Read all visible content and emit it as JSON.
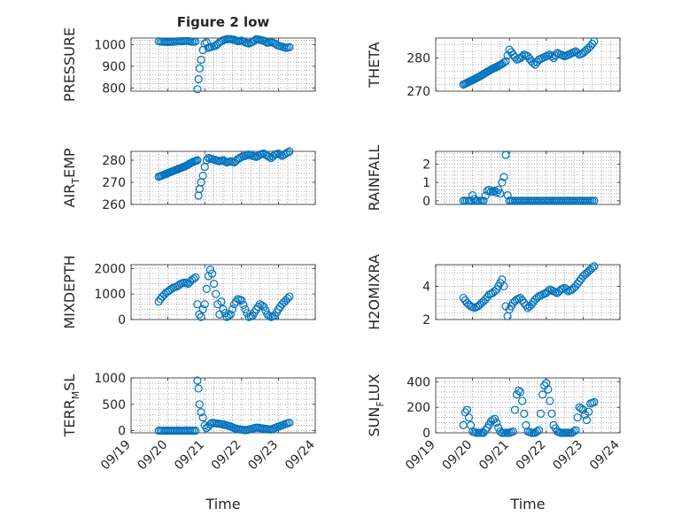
{
  "figure_title": "Figure 2 low",
  "chart_data": [
    {
      "type": "scatter",
      "title": "Figure 2 low",
      "ylabel": "PRESSURE",
      "xlabel": "",
      "xlim": [
        0,
        5
      ],
      "ylim": [
        785,
        1030
      ],
      "yticks": [
        800,
        900,
        1000
      ],
      "xtick_labels": [
        "09/19",
        "09/20",
        "09/21",
        "09/22",
        "09/23",
        "09/24"
      ],
      "x": [
        0.75,
        0.85,
        0.95,
        1.05,
        1.15,
        1.25,
        1.35,
        1.45,
        1.55,
        1.65,
        1.75,
        1.8,
        1.83,
        1.86,
        1.9,
        1.95,
        2.0,
        2.05,
        2.1,
        2.2,
        2.3,
        2.4,
        2.5,
        2.6,
        2.7,
        2.8,
        2.9,
        3.0,
        3.1,
        3.2,
        3.3,
        3.4,
        3.5,
        3.6,
        3.7,
        3.8,
        3.9,
        4.0,
        4.1,
        4.2,
        4.3
      ],
      "y": [
        1015,
        1013,
        1012,
        1012,
        1013,
        1015,
        1015,
        1016,
        1016,
        1013,
        1014,
        794,
        840,
        890,
        930,
        975,
        1005,
        1010,
        985,
        990,
        995,
        1010,
        1020,
        1025,
        1025,
        1022,
        1015,
        1018,
        1010,
        1005,
        1012,
        1025,
        1022,
        1018,
        1008,
        1012,
        1005,
        995,
        990,
        985,
        988
      ]
    },
    {
      "type": "scatter",
      "ylabel": "THETA",
      "xlabel": "",
      "xlim": [
        0,
        5
      ],
      "ylim": [
        270,
        286
      ],
      "yticks": [
        270,
        280
      ],
      "xtick_labels": [
        "09/19",
        "09/20",
        "09/21",
        "09/22",
        "09/23",
        "09/24"
      ],
      "x": [
        0.75,
        0.9,
        1.05,
        1.2,
        1.35,
        1.5,
        1.65,
        1.8,
        1.9,
        2.0,
        2.1,
        2.2,
        2.3,
        2.4,
        2.5,
        2.6,
        2.7,
        2.8,
        2.9,
        3.0,
        3.1,
        3.2,
        3.3,
        3.4,
        3.5,
        3.6,
        3.7,
        3.8,
        3.9,
        4.0,
        4.1,
        4.2,
        4.3
      ],
      "y": [
        272,
        272.8,
        273.6,
        274.5,
        275.5,
        276.5,
        277.3,
        278.2,
        279,
        282.5,
        281,
        279.5,
        280,
        281,
        280.5,
        279,
        278,
        279.5,
        280,
        280.5,
        281,
        280,
        281.5,
        281,
        280.5,
        281,
        281.5,
        282,
        281,
        281.5,
        282.5,
        283.5,
        285
      ]
    },
    {
      "type": "scatter",
      "ylabel": "AIR_TEMP",
      "xlabel": "",
      "xlim": [
        0,
        5
      ],
      "ylim": [
        260,
        284
      ],
      "yticks": [
        260,
        270,
        280
      ],
      "xtick_labels": [
        "09/19",
        "09/20",
        "09/21",
        "09/22",
        "09/23",
        "09/24"
      ],
      "x": [
        0.75,
        0.9,
        1.05,
        1.2,
        1.35,
        1.5,
        1.65,
        1.8,
        1.83,
        1.86,
        1.9,
        1.95,
        2.0,
        2.05,
        2.1,
        2.2,
        2.3,
        2.4,
        2.5,
        2.6,
        2.7,
        2.8,
        2.9,
        3.0,
        3.1,
        3.2,
        3.3,
        3.4,
        3.5,
        3.6,
        3.7,
        3.8,
        3.9,
        4.0,
        4.1,
        4.2,
        4.3
      ],
      "y": [
        272.5,
        273.5,
        274.5,
        275.5,
        276.5,
        277.5,
        279,
        280,
        264,
        267,
        270,
        273,
        277,
        280,
        281,
        280.5,
        280,
        279.5,
        280,
        279,
        279.5,
        279,
        280.5,
        281.5,
        282,
        282.5,
        282,
        281.5,
        282.5,
        283,
        282,
        281,
        282.5,
        283,
        282,
        283,
        284
      ]
    },
    {
      "type": "scatter",
      "ylabel": "RAINFALL",
      "xlabel": "",
      "xlim": [
        0,
        5
      ],
      "ylim": [
        -0.2,
        2.7
      ],
      "yticks": [
        0,
        1,
        2
      ],
      "xtick_labels": [
        "09/19",
        "09/20",
        "09/21",
        "09/22",
        "09/23",
        "09/24"
      ],
      "x": [
        0.75,
        0.85,
        0.95,
        1.0,
        1.05,
        1.1,
        1.2,
        1.3,
        1.4,
        1.45,
        1.5,
        1.55,
        1.6,
        1.65,
        1.7,
        1.75,
        1.8,
        1.85,
        1.9,
        1.95,
        2.0,
        2.1,
        2.2,
        2.3,
        2.4,
        2.5,
        2.6,
        2.7,
        2.8,
        2.9,
        3.0,
        3.1,
        3.2,
        3.3,
        3.4,
        3.5,
        3.6,
        3.7,
        3.8,
        3.9,
        4.0,
        4.1,
        4.2,
        4.3
      ],
      "y": [
        0,
        0,
        0,
        0.3,
        0.1,
        0,
        0,
        0,
        0.55,
        0.6,
        0.5,
        0.5,
        0.55,
        0.45,
        0.6,
        0.4,
        1.0,
        1.3,
        2.5,
        0.3,
        0,
        0,
        0,
        0,
        0,
        0,
        0,
        0,
        0,
        0,
        0,
        0,
        0,
        0,
        0,
        0,
        0,
        0,
        0,
        0,
        0,
        0,
        0,
        0
      ]
    },
    {
      "type": "scatter",
      "ylabel": "MIXDEPTH",
      "xlabel": "",
      "xlim": [
        0,
        5
      ],
      "ylim": [
        0,
        2150
      ],
      "yticks": [
        0,
        1000,
        2000
      ],
      "xtick_labels": [
        "09/19",
        "09/20",
        "09/21",
        "09/22",
        "09/23",
        "09/24"
      ],
      "x": [
        0.75,
        0.85,
        0.95,
        1.05,
        1.15,
        1.25,
        1.35,
        1.45,
        1.55,
        1.65,
        1.75,
        1.8,
        1.85,
        1.9,
        1.95,
        2.0,
        2.05,
        2.1,
        2.15,
        2.2,
        2.25,
        2.3,
        2.35,
        2.4,
        2.45,
        2.5,
        2.6,
        2.7,
        2.8,
        2.9,
        3.0,
        3.1,
        3.2,
        3.3,
        3.4,
        3.5,
        3.6,
        3.7,
        3.8,
        3.9,
        4.0,
        4.1,
        4.2,
        4.3
      ],
      "y": [
        700,
        900,
        1050,
        1150,
        1250,
        1300,
        1400,
        1450,
        1400,
        1550,
        1650,
        600,
        200,
        100,
        400,
        600,
        1200,
        1700,
        1950,
        1800,
        1400,
        1000,
        600,
        200,
        700,
        400,
        100,
        200,
        600,
        800,
        750,
        400,
        100,
        150,
        400,
        600,
        500,
        200,
        100,
        150,
        400,
        600,
        750,
        900
      ]
    },
    {
      "type": "scatter",
      "ylabel": "H2OMIXRA",
      "xlabel": "",
      "xlim": [
        0,
        5
      ],
      "ylim": [
        2,
        5.3
      ],
      "yticks": [
        2,
        4
      ],
      "xtick_labels": [
        "09/19",
        "09/20",
        "09/21",
        "09/22",
        "09/23",
        "09/24"
      ],
      "x": [
        0.75,
        0.85,
        0.95,
        1.05,
        1.15,
        1.25,
        1.35,
        1.45,
        1.55,
        1.65,
        1.75,
        1.8,
        1.85,
        1.9,
        1.95,
        2.0,
        2.1,
        2.2,
        2.3,
        2.4,
        2.5,
        2.6,
        2.7,
        2.8,
        2.9,
        3.0,
        3.1,
        3.2,
        3.3,
        3.4,
        3.5,
        3.6,
        3.7,
        3.8,
        3.9,
        4.0,
        4.1,
        4.2,
        4.3
      ],
      "y": [
        3.3,
        3.0,
        2.8,
        2.7,
        2.8,
        3.0,
        3.2,
        3.5,
        3.6,
        3.8,
        4.2,
        4.4,
        4.0,
        2.8,
        2.2,
        2.6,
        3.0,
        3.2,
        3.3,
        3.0,
        2.7,
        2.9,
        3.2,
        3.4,
        3.5,
        3.6,
        3.8,
        3.7,
        3.6,
        3.8,
        3.9,
        3.7,
        3.8,
        4.0,
        4.3,
        4.6,
        4.8,
        5.0,
        5.2
      ]
    },
    {
      "type": "scatter",
      "ylabel": "TERR_MSL",
      "xlabel": "Time",
      "xlim": [
        0,
        5
      ],
      "ylim": [
        -40,
        1000
      ],
      "yticks": [
        0,
        500,
        1000
      ],
      "xtick_labels": [
        "09/19",
        "09/20",
        "09/21",
        "09/22",
        "09/23",
        "09/24"
      ],
      "x": [
        0.75,
        0.85,
        0.95,
        1.05,
        1.15,
        1.25,
        1.35,
        1.45,
        1.55,
        1.65,
        1.75,
        1.8,
        1.83,
        1.86,
        1.9,
        1.95,
        2.0,
        2.05,
        2.1,
        2.2,
        2.3,
        2.4,
        2.5,
        2.6,
        2.7,
        2.8,
        2.9,
        3.0,
        3.1,
        3.2,
        3.3,
        3.4,
        3.5,
        3.6,
        3.7,
        3.8,
        3.9,
        4.0,
        4.1,
        4.2,
        4.3
      ],
      "y": [
        0,
        0,
        0,
        0,
        0,
        0,
        0,
        0,
        0,
        0,
        0,
        950,
        800,
        500,
        350,
        250,
        100,
        50,
        80,
        150,
        140,
        130,
        120,
        100,
        80,
        50,
        30,
        20,
        10,
        20,
        40,
        60,
        50,
        40,
        30,
        20,
        50,
        80,
        100,
        130,
        150
      ]
    },
    {
      "type": "scatter",
      "ylabel": "SUN_FLUX",
      "xlabel": "Time",
      "xlim": [
        0,
        5
      ],
      "ylim": [
        0,
        430
      ],
      "yticks": [
        0,
        200,
        400
      ],
      "xtick_labels": [
        "09/19",
        "09/20",
        "09/21",
        "09/22",
        "09/23",
        "09/24"
      ],
      "x": [
        0.75,
        0.8,
        0.85,
        0.9,
        0.95,
        1.0,
        1.1,
        1.2,
        1.3,
        1.4,
        1.5,
        1.6,
        1.65,
        1.7,
        1.75,
        1.8,
        1.9,
        2.0,
        2.1,
        2.15,
        2.2,
        2.25,
        2.3,
        2.35,
        2.4,
        2.45,
        2.5,
        2.6,
        2.7,
        2.8,
        2.85,
        2.9,
        2.95,
        3.0,
        3.05,
        3.1,
        3.15,
        3.2,
        3.3,
        3.4,
        3.5,
        3.6,
        3.7,
        3.8,
        3.85,
        3.9,
        4.0,
        4.1,
        4.2,
        4.3
      ],
      "y": [
        60,
        160,
        180,
        120,
        60,
        10,
        0,
        0,
        0,
        40,
        90,
        110,
        80,
        40,
        10,
        0,
        0,
        0,
        10,
        180,
        300,
        330,
        320,
        250,
        150,
        60,
        10,
        0,
        0,
        20,
        150,
        300,
        370,
        390,
        340,
        250,
        150,
        60,
        10,
        0,
        0,
        0,
        0,
        20,
        120,
        200,
        180,
        100,
        230,
        240
      ]
    }
  ]
}
